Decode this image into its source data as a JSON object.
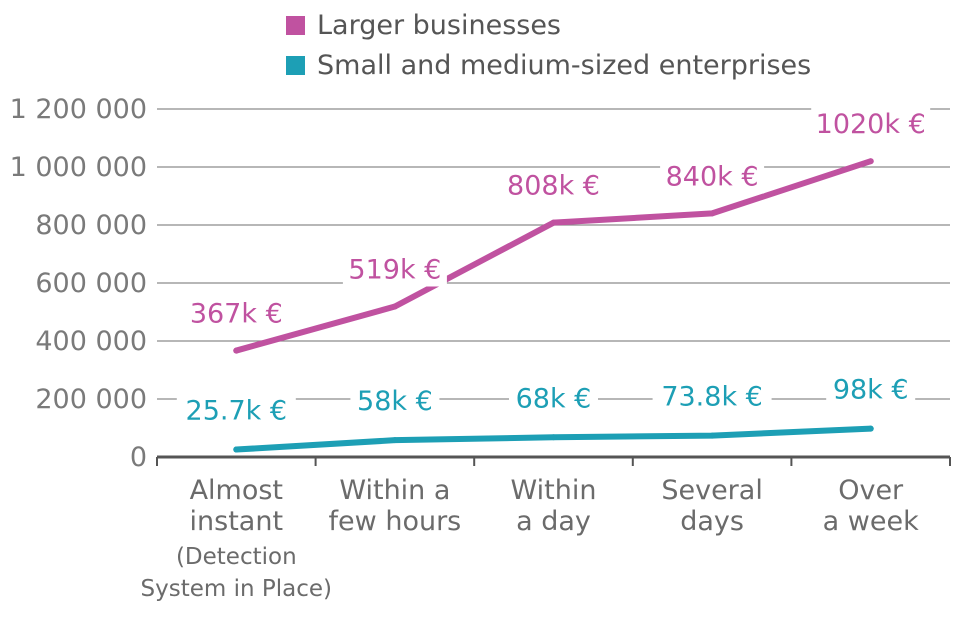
{
  "chart_data": {
    "type": "line",
    "title": "",
    "xlabel": "",
    "ylabel": "",
    "ylim": [
      0,
      1200000
    ],
    "yticks": [
      0,
      200000,
      400000,
      600000,
      800000,
      1000000,
      1200000
    ],
    "ytick_labels": [
      "0",
      "200 000",
      "400 000",
      "600 000",
      "800 000",
      "1 000 000",
      "1 200 000"
    ],
    "grid": true,
    "legend": "top",
    "categories": [
      {
        "line1": "Almost",
        "line2": "instant",
        "note1": "(Detection",
        "note2": "System in Place)"
      },
      {
        "line1": "Within a",
        "line2": "few hours",
        "note1": "",
        "note2": ""
      },
      {
        "line1": "Within",
        "line2": "a day",
        "note1": "",
        "note2": ""
      },
      {
        "line1": "Several",
        "line2": "days",
        "note1": "",
        "note2": ""
      },
      {
        "line1": "Over",
        "line2": "a week",
        "note1": "",
        "note2": ""
      }
    ],
    "series": [
      {
        "name": "Larger businesses",
        "color": "#c052a0",
        "values": [
          367000,
          519000,
          808000,
          840000,
          1020000
        ],
        "labels": [
          "367k €",
          "519k €",
          "808k €",
          "840k €",
          "1020k €"
        ]
      },
      {
        "name": "Small and medium-sized enterprises",
        "color": "#1d9fb5",
        "values": [
          25700,
          58000,
          68000,
          73800,
          98000
        ],
        "labels": [
          "25.7k €",
          "58k €",
          "68k €",
          "73.8k €",
          "98k €"
        ]
      }
    ]
  }
}
